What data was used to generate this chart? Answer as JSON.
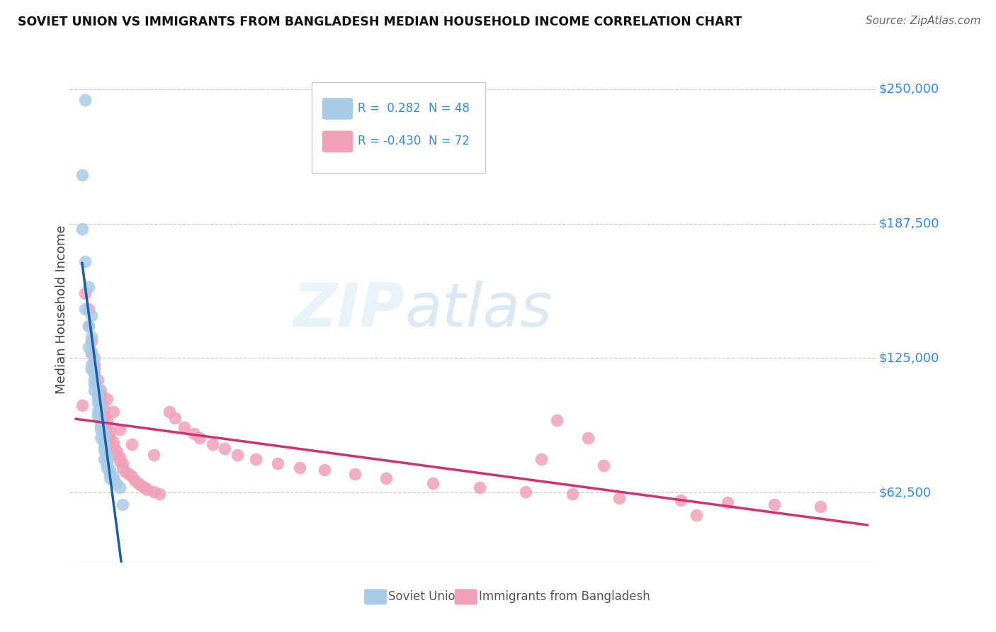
{
  "title": "SOVIET UNION VS IMMIGRANTS FROM BANGLADESH MEDIAN HOUSEHOLD INCOME CORRELATION CHART",
  "source": "Source: ZipAtlas.com",
  "ylabel": "Median Household Income",
  "ytick_labels": [
    "$62,500",
    "$125,000",
    "$187,500",
    "$250,000"
  ],
  "ytick_values": [
    62500,
    125000,
    187500,
    250000
  ],
  "ylim": [
    30000,
    265000
  ],
  "xlim": [
    -0.002,
    0.258
  ],
  "watermark_zip": "ZIP",
  "watermark_atlas": "atlas",
  "blue_color": "#a8cce8",
  "pink_color": "#f0a0b8",
  "blue_line_color": "#1a5fa8",
  "pink_line_color": "#d43070",
  "blue_dashed_color": "#90bcd8",
  "soviet_x": [
    0.003,
    0.002,
    0.002,
    0.003,
    0.004,
    0.003,
    0.005,
    0.004,
    0.005,
    0.004,
    0.005,
    0.006,
    0.005,
    0.005,
    0.006,
    0.006,
    0.006,
    0.007,
    0.006,
    0.007,
    0.007,
    0.007,
    0.008,
    0.007,
    0.007,
    0.008,
    0.008,
    0.008,
    0.009,
    0.008,
    0.009,
    0.009,
    0.009,
    0.01,
    0.009,
    0.01,
    0.01,
    0.01,
    0.01,
    0.011,
    0.011,
    0.011,
    0.012,
    0.011,
    0.012,
    0.013,
    0.014,
    0.015
  ],
  "soviet_y": [
    245000,
    210000,
    185000,
    170000,
    158000,
    148000,
    145000,
    140000,
    135000,
    130000,
    128000,
    125000,
    122000,
    120000,
    118000,
    115000,
    113000,
    111000,
    110000,
    108000,
    106000,
    104000,
    102000,
    100000,
    98000,
    96000,
    94000,
    92000,
    90000,
    88000,
    86000,
    84000,
    82000,
    80000,
    78000,
    77000,
    76000,
    75000,
    74000,
    73000,
    72000,
    71000,
    70000,
    69000,
    68000,
    67000,
    65000,
    57000
  ],
  "bangladesh_x": [
    0.002,
    0.003,
    0.004,
    0.004,
    0.005,
    0.005,
    0.006,
    0.006,
    0.007,
    0.007,
    0.008,
    0.008,
    0.009,
    0.009,
    0.01,
    0.01,
    0.011,
    0.011,
    0.012,
    0.012,
    0.013,
    0.013,
    0.014,
    0.014,
    0.015,
    0.015,
    0.016,
    0.017,
    0.018,
    0.019,
    0.02,
    0.021,
    0.022,
    0.023,
    0.025,
    0.027,
    0.03,
    0.032,
    0.035,
    0.038,
    0.04,
    0.044,
    0.048,
    0.052,
    0.058,
    0.065,
    0.072,
    0.08,
    0.09,
    0.1,
    0.115,
    0.13,
    0.145,
    0.16,
    0.175,
    0.195,
    0.21,
    0.225,
    0.24,
    0.15,
    0.17,
    0.2,
    0.155,
    0.165,
    0.008,
    0.01,
    0.012,
    0.006,
    0.014,
    0.018,
    0.025
  ],
  "bangladesh_y": [
    103000,
    155000,
    148000,
    140000,
    133000,
    127000,
    122000,
    118000,
    115000,
    111000,
    108000,
    104000,
    101000,
    98000,
    96000,
    93000,
    91000,
    88000,
    86000,
    84000,
    82000,
    80000,
    79000,
    77000,
    76000,
    74000,
    72000,
    71000,
    70000,
    68000,
    67000,
    66000,
    65000,
    64000,
    63000,
    62000,
    100000,
    97000,
    93000,
    90000,
    88000,
    85000,
    83000,
    80000,
    78000,
    76000,
    74000,
    73000,
    71000,
    69000,
    67000,
    65000,
    63000,
    62000,
    60000,
    59000,
    58000,
    57000,
    56000,
    78000,
    75000,
    52000,
    96000,
    88000,
    110000,
    106000,
    100000,
    120000,
    92000,
    85000,
    80000
  ]
}
